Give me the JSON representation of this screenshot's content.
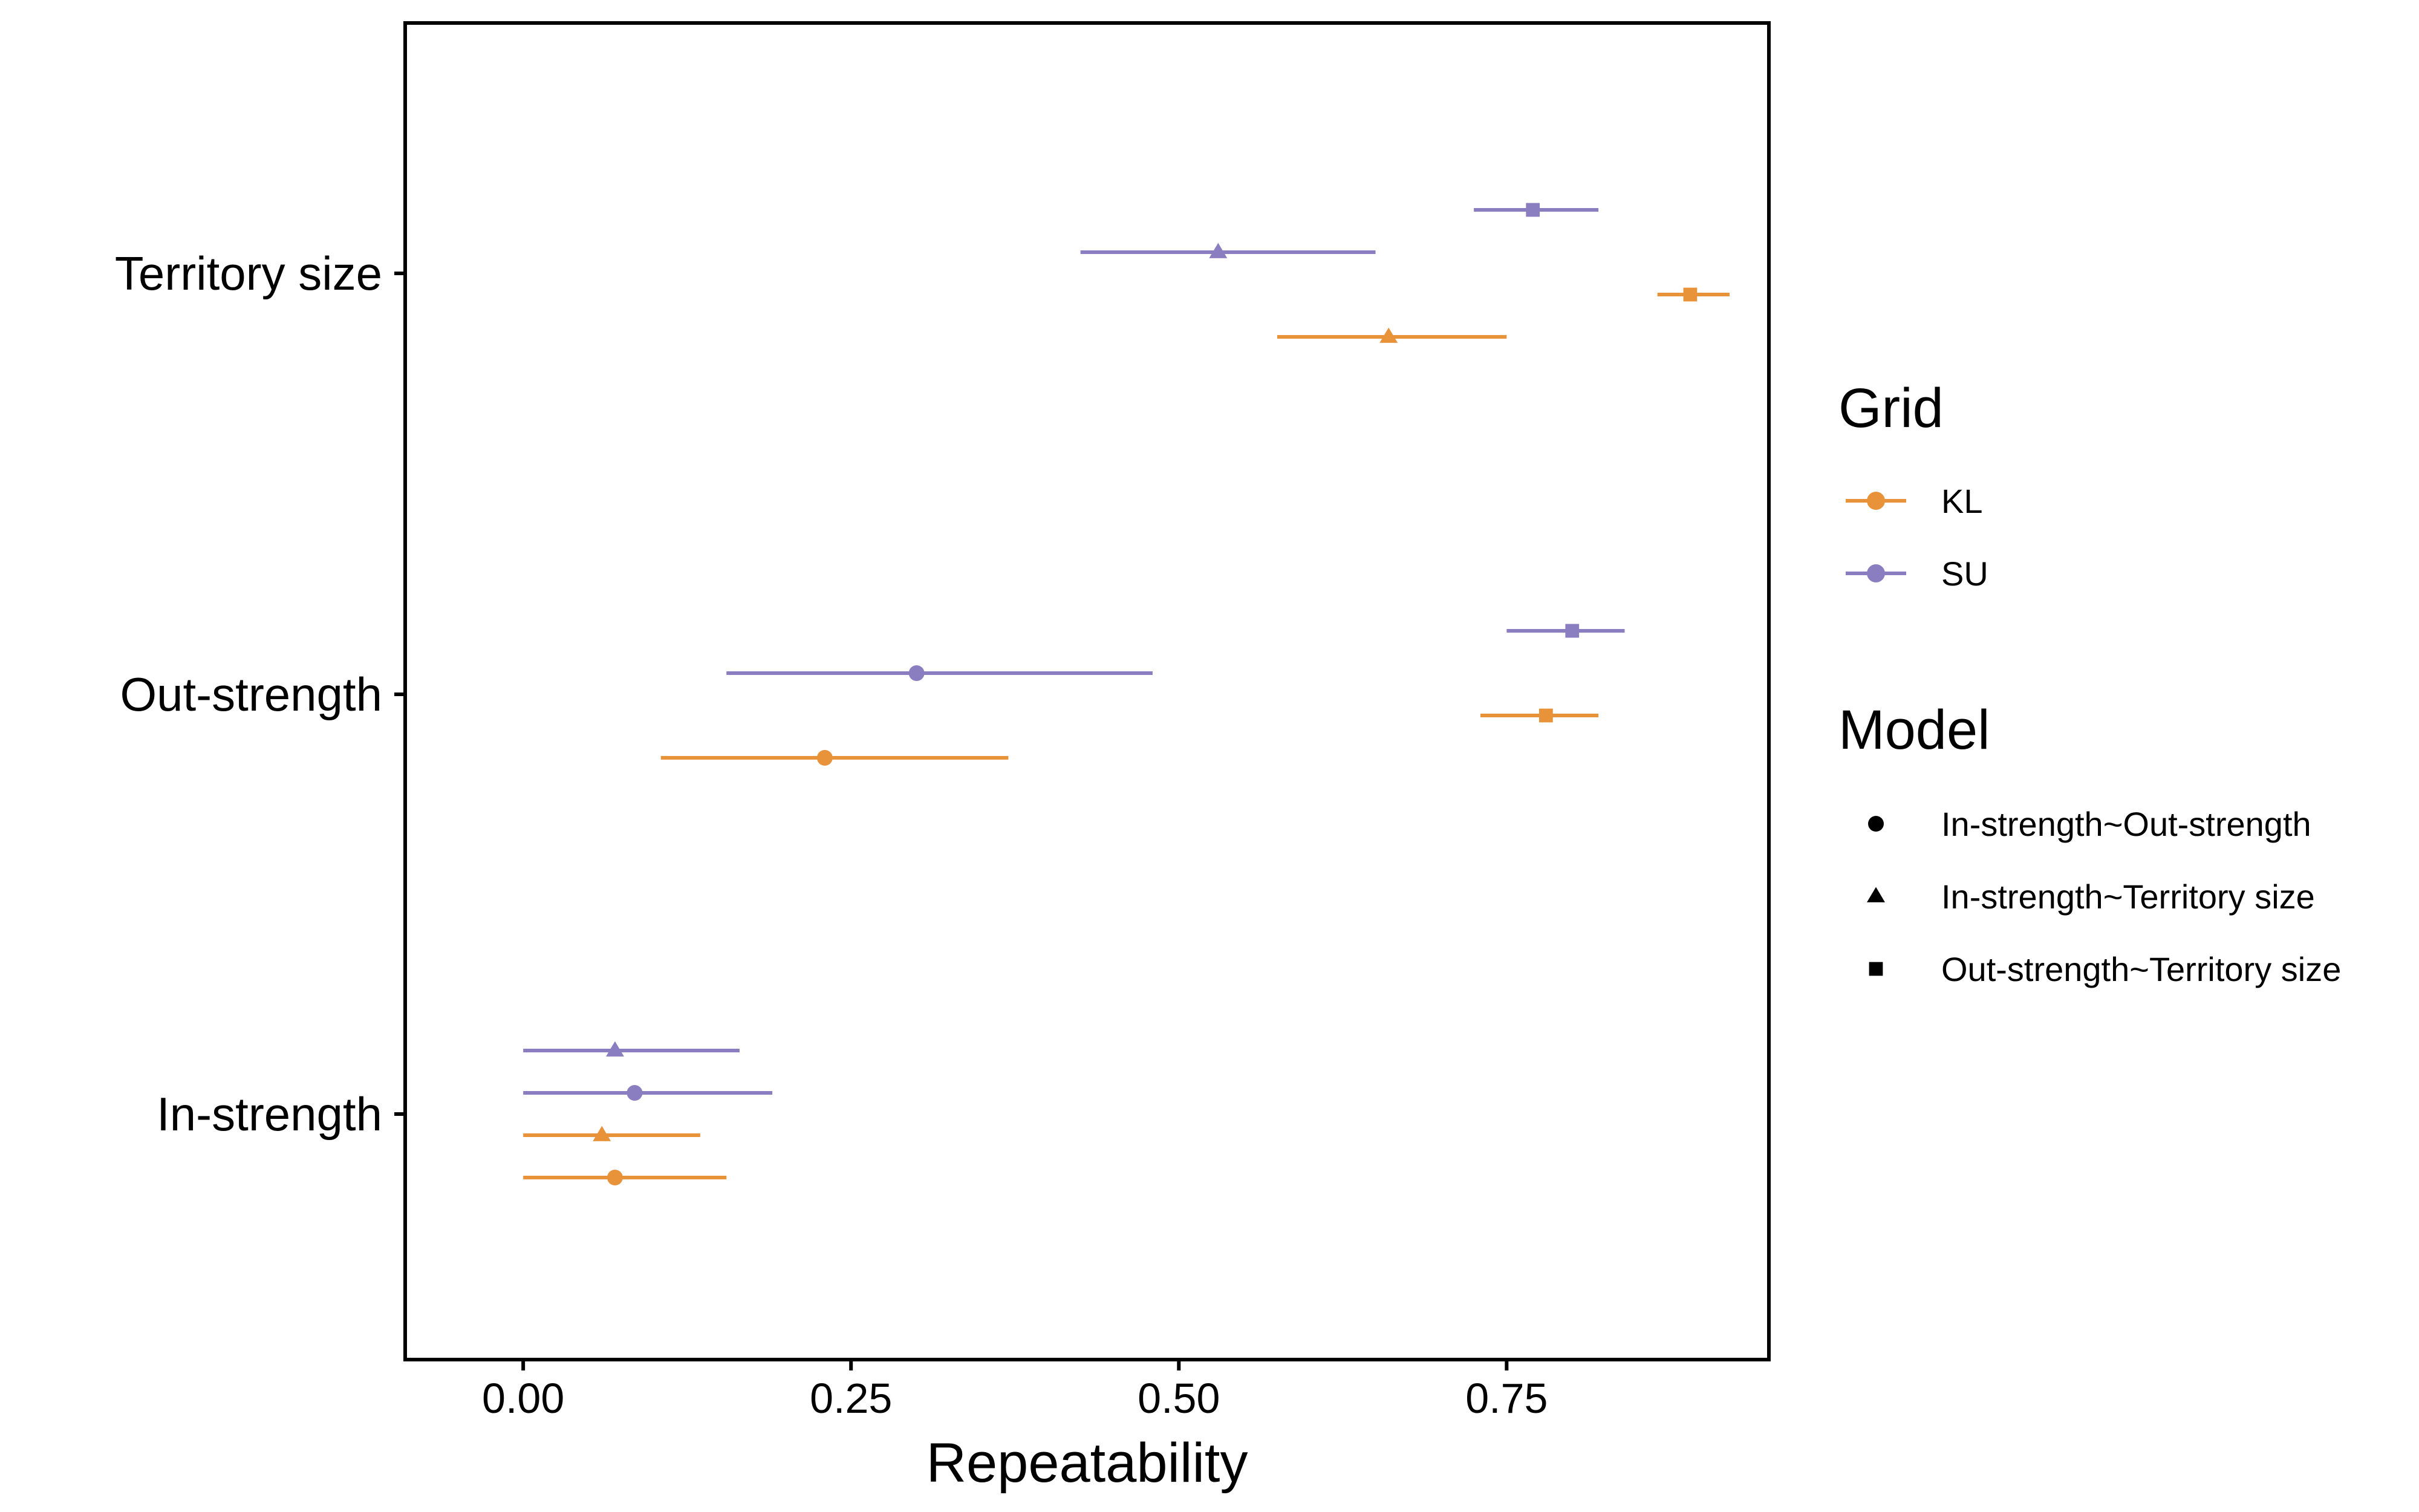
{
  "chart_data": {
    "type": "scatter",
    "subtype": "point-range",
    "xlabel": "Repeatability",
    "ylabel": "",
    "xlim": [
      -0.09,
      0.95
    ],
    "xticks": [
      0.0,
      0.25,
      0.5,
      0.75
    ],
    "xtick_labels": [
      "0.00",
      "0.25",
      "0.50",
      "0.75"
    ],
    "categories": [
      "Territory size",
      "Out-strength",
      "In-strength"
    ],
    "grid": false,
    "legend_position": "right",
    "legends": [
      {
        "title": "Grid",
        "entries": [
          {
            "label": "KL",
            "color": "#E8923A"
          },
          {
            "label": "SU",
            "color": "#8B7EC0"
          }
        ]
      },
      {
        "title": "Model",
        "entries": [
          {
            "label": "In-strength~Out-strength",
            "shape": "circle"
          },
          {
            "label": "In-strength~Territory size",
            "shape": "triangle"
          },
          {
            "label": "Out-strength~Territory size",
            "shape": "square"
          }
        ]
      }
    ],
    "points": [
      {
        "category": "Territory size",
        "grid": "SU",
        "model": "Out-strength~Territory size",
        "value": 0.77,
        "lower": 0.725,
        "upper": 0.82,
        "rank": 4
      },
      {
        "category": "Territory size",
        "grid": "SU",
        "model": "In-strength~Territory size",
        "value": 0.53,
        "lower": 0.425,
        "upper": 0.65,
        "rank": 3
      },
      {
        "category": "Territory size",
        "grid": "KL",
        "model": "Out-strength~Territory size",
        "value": 0.89,
        "lower": 0.865,
        "upper": 0.92,
        "rank": 2
      },
      {
        "category": "Territory size",
        "grid": "KL",
        "model": "In-strength~Territory size",
        "value": 0.66,
        "lower": 0.575,
        "upper": 0.75,
        "rank": 1
      },
      {
        "category": "Out-strength",
        "grid": "SU",
        "model": "Out-strength~Territory size",
        "value": 0.8,
        "lower": 0.75,
        "upper": 0.84,
        "rank": 4
      },
      {
        "category": "Out-strength",
        "grid": "SU",
        "model": "In-strength~Out-strength",
        "value": 0.3,
        "lower": 0.155,
        "upper": 0.48,
        "rank": 3
      },
      {
        "category": "Out-strength",
        "grid": "KL",
        "model": "Out-strength~Territory size",
        "value": 0.78,
        "lower": 0.73,
        "upper": 0.82,
        "rank": 2
      },
      {
        "category": "Out-strength",
        "grid": "KL",
        "model": "In-strength~Out-strength",
        "value": 0.23,
        "lower": 0.105,
        "upper": 0.37,
        "rank": 1
      },
      {
        "category": "In-strength",
        "grid": "SU",
        "model": "In-strength~Territory size",
        "value": 0.07,
        "lower": 0.0,
        "upper": 0.165,
        "rank": 4
      },
      {
        "category": "In-strength",
        "grid": "SU",
        "model": "In-strength~Out-strength",
        "value": 0.085,
        "lower": 0.0,
        "upper": 0.19,
        "rank": 3
      },
      {
        "category": "In-strength",
        "grid": "KL",
        "model": "In-strength~Territory size",
        "value": 0.06,
        "lower": 0.0,
        "upper": 0.135,
        "rank": 2
      },
      {
        "category": "In-strength",
        "grid": "KL",
        "model": "In-strength~Out-strength",
        "value": 0.07,
        "lower": 0.0,
        "upper": 0.155,
        "rank": 1
      }
    ]
  }
}
